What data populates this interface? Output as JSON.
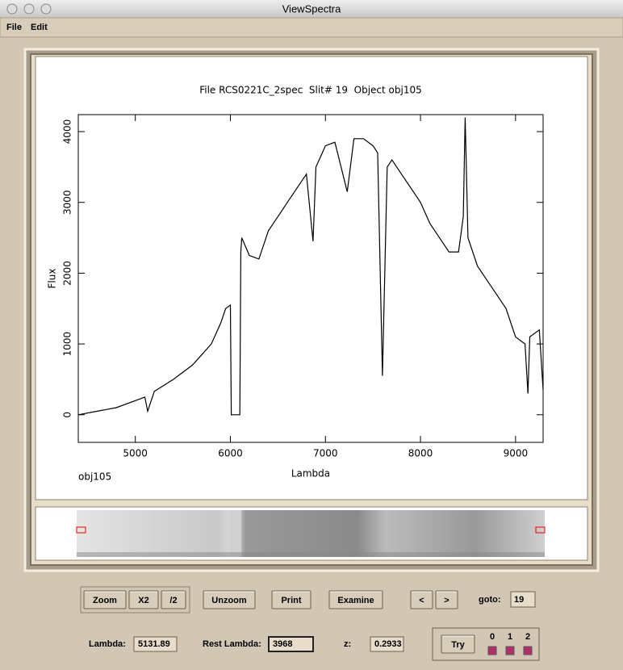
{
  "window": {
    "title": "ViewSpectra"
  },
  "menu": [
    "File",
    "Edit"
  ],
  "chart_data": {
    "type": "line",
    "title": "File RCS0221C_2spec  Slit# 19  Object obj105",
    "x_label": "Lambda",
    "y_label": "Flux",
    "annotation": "obj105",
    "x": [
      4400,
      4600,
      4800,
      5000,
      5100,
      5130,
      5200,
      5400,
      5600,
      5700,
      5800,
      5900,
      5950,
      6000,
      6010,
      6100,
      6110,
      6120,
      6200,
      6300,
      6400,
      6500,
      6600,
      6700,
      6800,
      6870,
      6900,
      7000,
      7100,
      7230,
      7300,
      7400,
      7500,
      7550,
      7600,
      7650,
      7700,
      7800,
      7900,
      8000,
      8100,
      8200,
      8300,
      8400,
      8450,
      8470,
      8500,
      8600,
      8700,
      8800,
      8900,
      9000,
      9100,
      9130,
      9150,
      9250,
      9290
    ],
    "series": [
      {
        "color": "#000000",
        "values": [
          0,
          50,
          100,
          200,
          250,
          50,
          330,
          500,
          700,
          850,
          1000,
          1300,
          1500,
          1550,
          0,
          0,
          2300,
          2500,
          2250,
          2200,
          2600,
          2800,
          3000,
          3200,
          3400,
          2450,
          3500,
          3800,
          3850,
          3150,
          3900,
          3900,
          3800,
          3700,
          550,
          3500,
          3600,
          3400,
          3200,
          3000,
          2700,
          2500,
          2300,
          2300,
          2800,
          4200,
          2500,
          2100,
          1900,
          1700,
          1500,
          1100,
          1000,
          300,
          1100,
          1200,
          350
        ]
      }
    ],
    "xlim": [
      4400,
      9290
    ],
    "ylim": [
      -390,
      4240
    ],
    "xticks": [
      5000,
      6000,
      7000,
      8000,
      9000
    ],
    "yticks": [
      0,
      1000,
      2000,
      3000,
      4000
    ]
  },
  "toolbar": {
    "buttons": [
      "Zoom",
      "X2",
      "/2",
      "Unzoom",
      "Print",
      "Examine",
      "<",
      ">"
    ],
    "goto_label": "goto:",
    "goto_value": "19"
  },
  "fields": [
    {
      "label": "Lambda:",
      "value": "5131.89"
    },
    {
      "label": "Rest Lambda:",
      "value": "3968"
    },
    {
      "label": "z:",
      "value": "0.2933"
    }
  ],
  "try": {
    "button": "Try",
    "options": [
      "0",
      "1",
      "2"
    ]
  }
}
